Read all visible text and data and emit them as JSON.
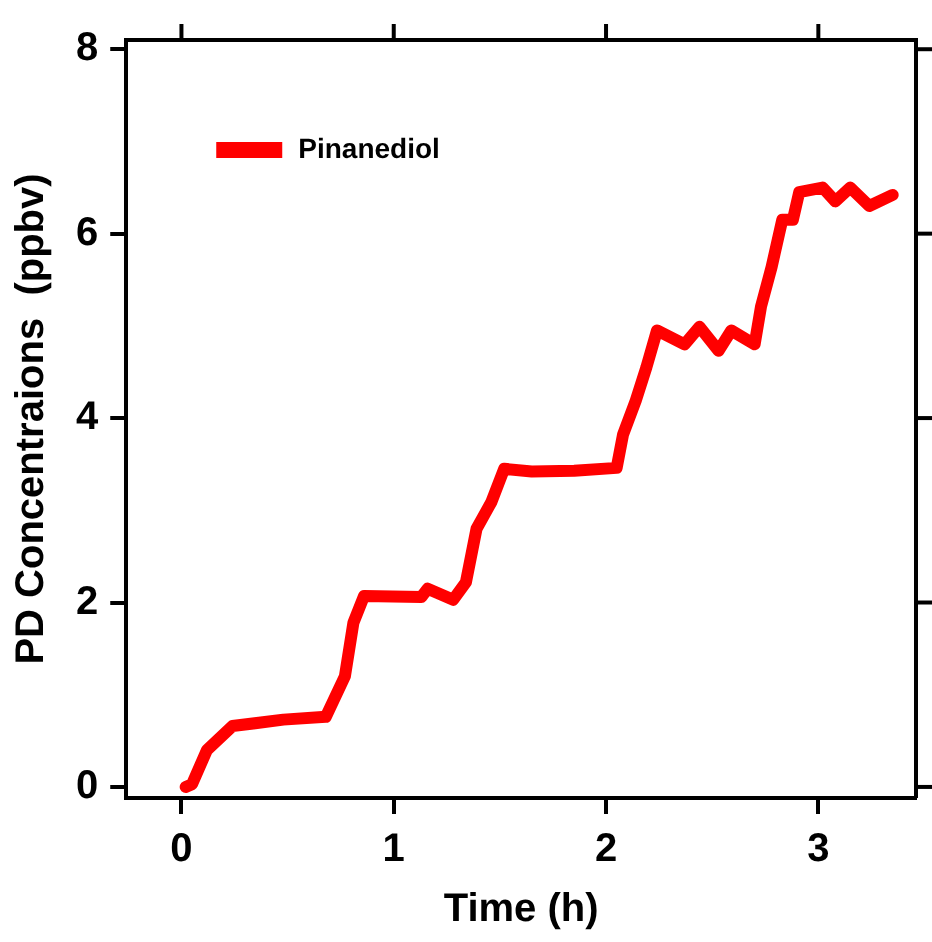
{
  "chart_data": {
    "type": "line",
    "xlabel": "Time (h)",
    "ylabel": "PD Concentraions  (ppbv)",
    "xlim": [
      -0.26,
      3.46
    ],
    "xticks": [
      0,
      1,
      2,
      3
    ],
    "ylim": [
      -0.12,
      8.1
    ],
    "yticks": [
      0,
      2,
      4,
      6,
      8
    ],
    "grid": false,
    "legend": "top left",
    "marker": "none",
    "line_style": "solid",
    "series": [
      {
        "name": "Pinanediol",
        "color": "#ff0000",
        "x": [
          0.02,
          0.05,
          0.12,
          0.24,
          0.48,
          0.68,
          0.77,
          0.81,
          0.86,
          1.13,
          1.16,
          1.28,
          1.34,
          1.39,
          1.46,
          1.52,
          1.65,
          1.85,
          2.05,
          2.08,
          2.14,
          2.19,
          2.24,
          2.37,
          2.44,
          2.53,
          2.59,
          2.7,
          2.73,
          2.78,
          2.83,
          2.88,
          2.91,
          3.02,
          3.08,
          3.15,
          3.24,
          3.35
        ],
        "values": [
          0.0,
          0.03,
          0.4,
          0.66,
          0.73,
          0.76,
          1.2,
          1.78,
          2.07,
          2.06,
          2.15,
          2.03,
          2.22,
          2.8,
          3.09,
          3.45,
          3.42,
          3.43,
          3.46,
          3.82,
          4.19,
          4.55,
          4.95,
          4.8,
          4.99,
          4.73,
          4.95,
          4.8,
          5.21,
          5.64,
          6.15,
          6.15,
          6.45,
          6.5,
          6.35,
          6.5,
          6.3,
          6.42
        ]
      }
    ]
  }
}
